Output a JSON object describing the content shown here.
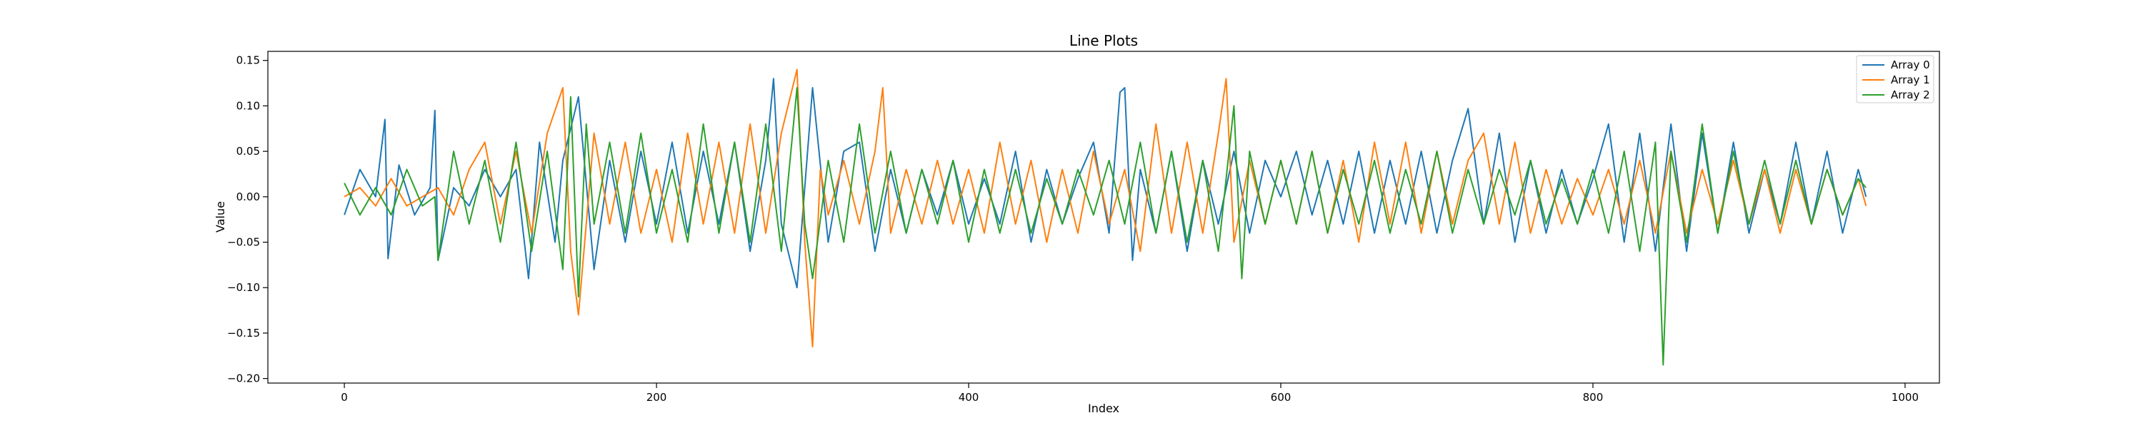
{
  "chart_data": {
    "type": "line",
    "title": "Line Plots",
    "xlabel": "Index",
    "ylabel": "Value",
    "xlim": [
      -49,
      1022
    ],
    "ylim": [
      -0.205,
      0.16
    ],
    "xticks": [
      0,
      200,
      400,
      600,
      800,
      1000
    ],
    "xtick_labels": [
      "0",
      "200",
      "400",
      "600",
      "800",
      "1000"
    ],
    "yticks": [
      -0.2,
      -0.15,
      -0.1,
      -0.05,
      0.0,
      0.05,
      0.1,
      0.15
    ],
    "ytick_labels": [
      "−0.20",
      "−0.15",
      "−0.10",
      "−0.05",
      "0.00",
      "0.05",
      "0.10",
      "0.15"
    ],
    "grid": false,
    "legend_position": "top-right",
    "series": [
      {
        "name": "Array 0",
        "color": "#1f77b4",
        "x": [
          0,
          10,
          20,
          26,
          28,
          35,
          45,
          55,
          58,
          60,
          70,
          80,
          90,
          100,
          110,
          118,
          125,
          135,
          140,
          150,
          160,
          170,
          180,
          190,
          200,
          210,
          220,
          230,
          240,
          250,
          260,
          270,
          275,
          280,
          290,
          300,
          310,
          320,
          330,
          340,
          350,
          360,
          370,
          380,
          390,
          400,
          410,
          420,
          430,
          440,
          450,
          460,
          470,
          480,
          490,
          497,
          500,
          505,
          510,
          520,
          530,
          540,
          550,
          560,
          570,
          580,
          590,
          600,
          610,
          620,
          630,
          640,
          650,
          660,
          670,
          680,
          690,
          700,
          710,
          720,
          730,
          740,
          750,
          760,
          770,
          780,
          790,
          800,
          810,
          820,
          830,
          840,
          850,
          860,
          870,
          880,
          890,
          900,
          910,
          920,
          930,
          940,
          950,
          960,
          970,
          975
        ],
        "y": [
          -0.02,
          0.03,
          0.0,
          0.085,
          -0.068,
          0.035,
          -0.02,
          0.01,
          0.095,
          -0.07,
          0.01,
          -0.01,
          0.03,
          0.0,
          0.03,
          -0.09,
          0.06,
          -0.05,
          0.04,
          0.11,
          -0.08,
          0.04,
          -0.05,
          0.05,
          -0.03,
          0.06,
          -0.04,
          0.05,
          -0.03,
          0.06,
          -0.06,
          0.04,
          0.13,
          -0.03,
          -0.1,
          0.12,
          -0.05,
          0.05,
          0.06,
          -0.06,
          0.03,
          -0.04,
          0.03,
          -0.02,
          0.04,
          -0.03,
          0.02,
          -0.03,
          0.05,
          -0.05,
          0.03,
          -0.03,
          0.02,
          0.06,
          -0.04,
          0.115,
          0.12,
          -0.07,
          0.03,
          -0.04,
          0.05,
          -0.06,
          0.04,
          -0.03,
          0.05,
          -0.04,
          0.04,
          0.0,
          0.05,
          -0.02,
          0.04,
          -0.03,
          0.05,
          -0.04,
          0.04,
          -0.03,
          0.05,
          -0.04,
          0.04,
          0.097,
          -0.03,
          0.07,
          -0.05,
          0.04,
          -0.04,
          0.03,
          -0.03,
          0.02,
          0.08,
          -0.05,
          0.07,
          -0.06,
          0.08,
          -0.06,
          0.07,
          -0.04,
          0.06,
          -0.04,
          0.03,
          -0.03,
          0.06,
          -0.03,
          0.05,
          -0.04,
          0.03,
          0.0
        ]
      },
      {
        "name": "Array 1",
        "color": "#ff7f0e",
        "x": [
          0,
          10,
          20,
          30,
          40,
          50,
          60,
          70,
          80,
          90,
          100,
          110,
          120,
          130,
          140,
          145,
          150,
          160,
          170,
          180,
          190,
          200,
          210,
          220,
          230,
          240,
          250,
          260,
          270,
          280,
          290,
          295,
          300,
          305,
          310,
          320,
          330,
          340,
          345,
          350,
          360,
          370,
          380,
          390,
          400,
          410,
          420,
          430,
          440,
          450,
          460,
          470,
          480,
          490,
          500,
          510,
          520,
          530,
          540,
          550,
          560,
          565,
          570,
          580,
          590,
          600,
          610,
          620,
          630,
          640,
          650,
          660,
          670,
          680,
          690,
          700,
          710,
          720,
          730,
          740,
          750,
          760,
          770,
          780,
          790,
          800,
          810,
          820,
          830,
          840,
          850,
          860,
          870,
          880,
          890,
          900,
          910,
          920,
          930,
          940,
          950,
          960,
          970,
          975
        ],
        "y": [
          0.0,
          0.01,
          -0.01,
          0.02,
          -0.01,
          0.0,
          0.01,
          -0.02,
          0.03,
          0.06,
          -0.03,
          0.05,
          -0.04,
          0.07,
          0.12,
          -0.06,
          -0.13,
          0.07,
          -0.03,
          0.06,
          -0.04,
          0.03,
          -0.05,
          0.07,
          -0.03,
          0.06,
          -0.04,
          0.08,
          -0.04,
          0.07,
          0.14,
          -0.05,
          -0.165,
          0.03,
          -0.02,
          0.04,
          -0.03,
          0.05,
          0.12,
          -0.04,
          0.03,
          -0.03,
          0.04,
          -0.03,
          0.03,
          -0.04,
          0.06,
          -0.03,
          0.04,
          -0.05,
          0.03,
          -0.04,
          0.05,
          -0.03,
          0.03,
          -0.06,
          0.08,
          -0.04,
          0.06,
          -0.04,
          0.07,
          0.13,
          -0.05,
          0.04,
          -0.03,
          0.04,
          -0.03,
          0.05,
          -0.04,
          0.04,
          -0.05,
          0.06,
          -0.03,
          0.06,
          -0.04,
          0.05,
          -0.03,
          0.04,
          0.07,
          -0.03,
          0.06,
          -0.04,
          0.03,
          -0.03,
          0.02,
          -0.02,
          0.03,
          -0.03,
          0.04,
          -0.04,
          0.05,
          -0.04,
          0.03,
          -0.03,
          0.04,
          -0.03,
          0.03,
          -0.04,
          0.03,
          -0.03,
          0.03,
          -0.02,
          0.02,
          -0.01
        ]
      },
      {
        "name": "Array 2",
        "color": "#2ca02c",
        "x": [
          0,
          10,
          20,
          30,
          40,
          50,
          58,
          60,
          70,
          80,
          90,
          100,
          110,
          120,
          130,
          140,
          145,
          150,
          155,
          160,
          170,
          180,
          190,
          200,
          210,
          220,
          230,
          240,
          250,
          260,
          270,
          280,
          290,
          295,
          300,
          310,
          320,
          330,
          340,
          350,
          360,
          370,
          380,
          390,
          400,
          410,
          420,
          430,
          440,
          450,
          460,
          470,
          480,
          490,
          500,
          510,
          520,
          530,
          540,
          550,
          560,
          570,
          575,
          580,
          590,
          600,
          610,
          620,
          630,
          640,
          650,
          660,
          670,
          680,
          690,
          700,
          710,
          720,
          730,
          740,
          750,
          760,
          770,
          780,
          790,
          800,
          810,
          820,
          830,
          840,
          845,
          850,
          860,
          870,
          880,
          890,
          900,
          910,
          920,
          930,
          940,
          950,
          960,
          970,
          975
        ],
        "y": [
          0.015,
          -0.02,
          0.01,
          -0.02,
          0.03,
          -0.01,
          0.0,
          -0.07,
          0.05,
          -0.03,
          0.04,
          -0.05,
          0.06,
          -0.06,
          0.05,
          -0.08,
          0.11,
          -0.11,
          0.08,
          -0.03,
          0.06,
          -0.04,
          0.07,
          -0.04,
          0.03,
          -0.05,
          0.08,
          -0.04,
          0.06,
          -0.05,
          0.08,
          -0.06,
          0.12,
          -0.03,
          -0.09,
          0.04,
          -0.05,
          0.08,
          -0.04,
          0.05,
          -0.04,
          0.03,
          -0.03,
          0.04,
          -0.05,
          0.03,
          -0.04,
          0.03,
          -0.04,
          0.02,
          -0.03,
          0.03,
          -0.02,
          0.04,
          -0.03,
          0.06,
          -0.04,
          0.05,
          -0.05,
          0.04,
          -0.06,
          0.1,
          -0.09,
          0.05,
          -0.03,
          0.04,
          -0.03,
          0.05,
          -0.04,
          0.03,
          -0.03,
          0.04,
          -0.04,
          0.03,
          -0.03,
          0.05,
          -0.04,
          0.03,
          -0.03,
          0.03,
          -0.02,
          0.04,
          -0.03,
          0.02,
          -0.03,
          0.03,
          -0.04,
          0.05,
          -0.06,
          0.06,
          -0.185,
          0.05,
          -0.05,
          0.08,
          -0.04,
          0.05,
          -0.03,
          0.04,
          -0.03,
          0.04,
          -0.03,
          0.03,
          -0.02,
          0.02,
          0.01
        ]
      }
    ]
  }
}
